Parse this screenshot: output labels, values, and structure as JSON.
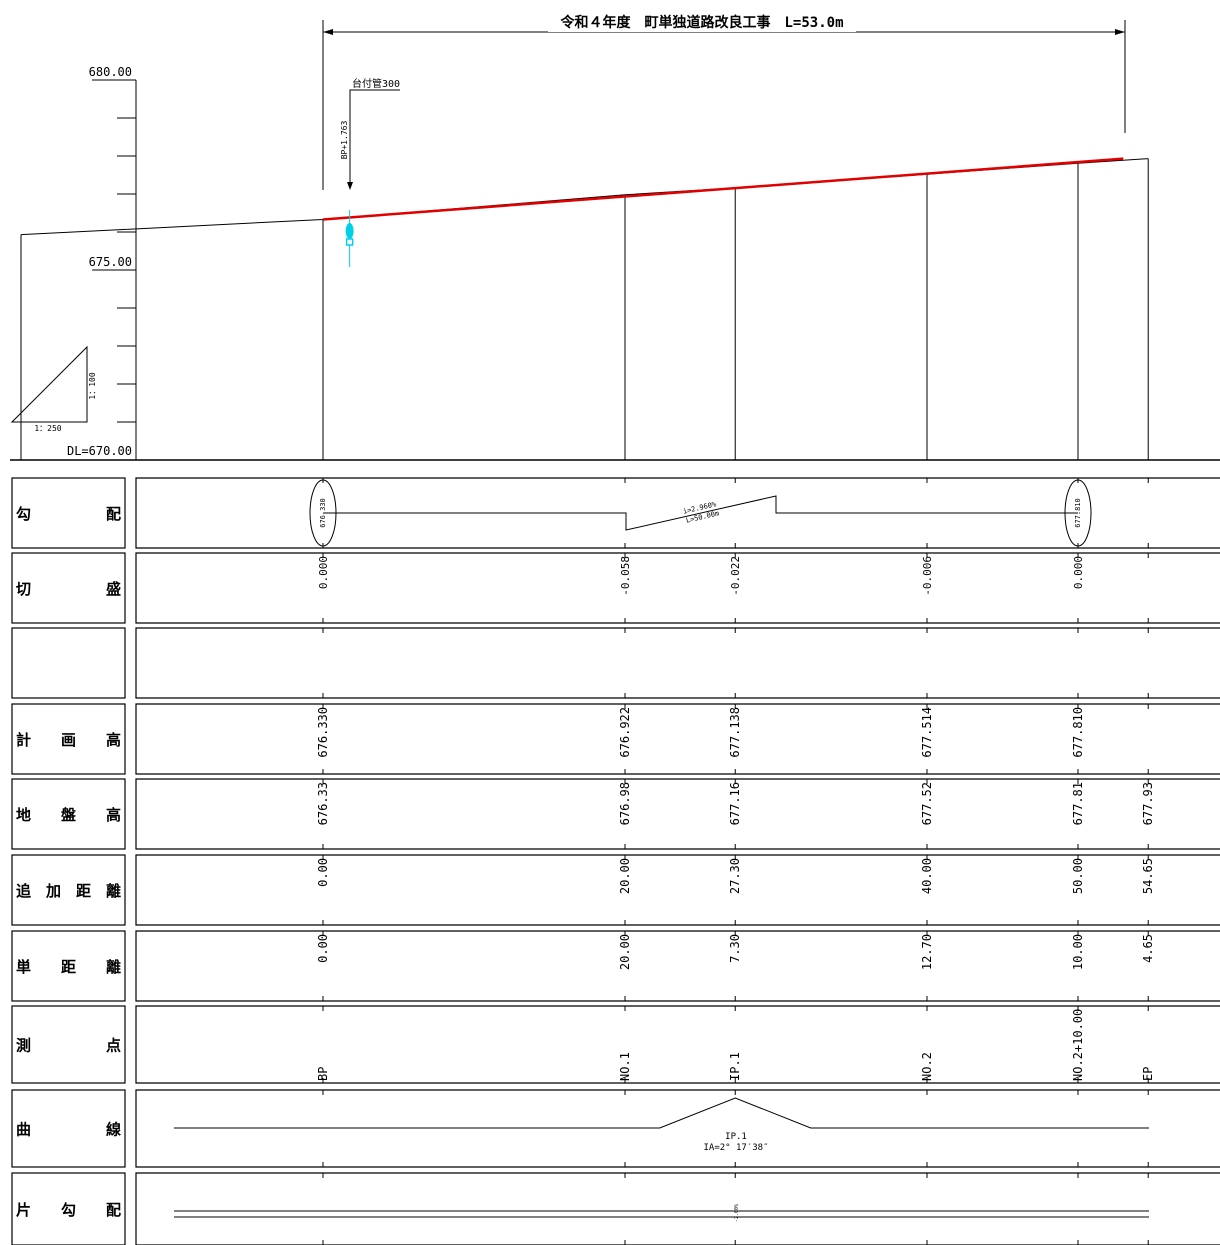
{
  "title": "令和４年度　町単独道路改良工事　L=53.0m",
  "elev_axis": {
    "top": "680.00",
    "mid": "675.00",
    "datum": "DL=670.00",
    "min": 670,
    "max": 680
  },
  "scale": {
    "vertical": "1：100",
    "horizontal": "1：250"
  },
  "annotation": {
    "pipe": "台付管300",
    "offset": "BP+1.763",
    "at_distance": 1.763,
    "color": "#00cfe8"
  },
  "profile": {
    "ground_color": "#000000",
    "plan_color": "#e00000",
    "start_distance": -20.0,
    "start_ground": 675.93,
    "plan_end_distance": 53.0,
    "plan_end_level": 677.93
  },
  "grade": {
    "text1": "i=2.960%",
    "text2": "L=50.00m",
    "left_elev": "676.330",
    "right_elev": "677.810"
  },
  "rows": [
    {
      "key": "grade",
      "label": "勾　　　配"
    },
    {
      "key": "cutfill",
      "label": "切　　　盛"
    },
    {
      "key": "blank",
      "label": ""
    },
    {
      "key": "plan",
      "label": "計　画　高"
    },
    {
      "key": "ground",
      "label": "地　盤　高"
    },
    {
      "key": "cumdist",
      "label": "追加距離"
    },
    {
      "key": "dist",
      "label": "単　距　離"
    },
    {
      "key": "station",
      "label": "測　　　点"
    },
    {
      "key": "curve",
      "label": "曲　　　線"
    },
    {
      "key": "cross",
      "label": "片　勾　配"
    }
  ],
  "stations": [
    {
      "name": "BP",
      "cum": 0.0,
      "cum_text": "0.00",
      "dist_text": "0.00",
      "cutfill": "0.000",
      "plan": "676.330",
      "ground": "676.33",
      "ground_val": 676.33
    },
    {
      "name": "NO.1",
      "cum": 20.0,
      "cum_text": "20.00",
      "dist_text": "20.00",
      "cutfill": "-0.058",
      "plan": "676.922",
      "ground": "676.98",
      "ground_val": 676.98
    },
    {
      "name": "IP.1",
      "cum": 27.3,
      "cum_text": "27.30",
      "dist_text": "7.30",
      "cutfill": "-0.022",
      "plan": "677.138",
      "ground": "677.16",
      "ground_val": 677.16
    },
    {
      "name": "NO.2",
      "cum": 40.0,
      "cum_text": "40.00",
      "dist_text": "12.70",
      "cutfill": "-0.006",
      "plan": "677.514",
      "ground": "677.52",
      "ground_val": 677.52
    },
    {
      "name": "NO.2+10.00",
      "cum": 50.0,
      "cum_text": "50.00",
      "dist_text": "10.00",
      "cutfill": "0.000",
      "plan": "677.810",
      "ground": "677.81",
      "ground_val": 677.81
    },
    {
      "name": "EP",
      "cum": 54.65,
      "cum_text": "54.65",
      "dist_text": "4.65",
      "cutfill": "",
      "plan": "",
      "ground": "677.93",
      "ground_val": 677.93
    }
  ],
  "curve": {
    "ip_name": "IP.1",
    "ia": "IA=2° 17′38″",
    "start": 22.3,
    "apex": 27.3,
    "end": 32.3
  },
  "cross_slope": {
    "value": "-2.00%"
  }
}
